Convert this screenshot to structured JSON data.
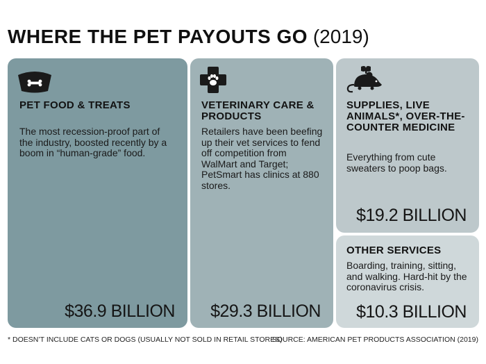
{
  "header": {
    "title": "WHERE THE PET PAYOUTS GO",
    "year": "(2019)"
  },
  "colors": {
    "food_tile": "#7e9aa0",
    "vet_tile": "#9fb2b6",
    "supplies_tile": "#bdc8cb",
    "services_tile": "#cfd8da",
    "icon": "#1a1a1a"
  },
  "chart_data": {
    "type": "treemap",
    "title": "WHERE THE PET PAYOUTS GO (2019)",
    "unit": "BILLION",
    "categories": [
      {
        "label": "PET FOOD & TREATS",
        "value": 36.9,
        "amount_text": "$36.9 BILLION",
        "description": "The most recession-proof part of the industry, boosted recently by a boom in “human-grade” food.",
        "icon": "pet-bowl-icon"
      },
      {
        "label": "VETERINARY CARE & PRODUCTS",
        "value": 29.3,
        "amount_text": "$29.3 BILLION",
        "description": "Retailers have been beefing up their vet services to fend off competition from WalMart and Target; PetSmart has clinics at 880 stores.",
        "icon": "vet-cross-paw-icon"
      },
      {
        "label": "SUPPLIES, LIVE ANIMALS*, OVER-THE-COUNTER MEDICINE",
        "value": 19.2,
        "amount_text": "$19.2 BILLION",
        "description": "Everything from cute sweaters to poop bags.",
        "icon": "toy-mouse-icon"
      },
      {
        "label": "OTHER SERVICES",
        "value": 10.3,
        "amount_text": "$10.3 BILLION",
        "description": "Boarding, training, sitting, and walking. Hard-hit by the coronavirus crisis.",
        "icon": ""
      }
    ]
  },
  "footer": {
    "footnote": "* DOESN’T INCLUDE CATS OR DOGS (USUALLY NOT SOLD IN RETAIL STORES)",
    "source": "SOURCE: AMERICAN PET PRODUCTS ASSOCIATION (2019)"
  }
}
